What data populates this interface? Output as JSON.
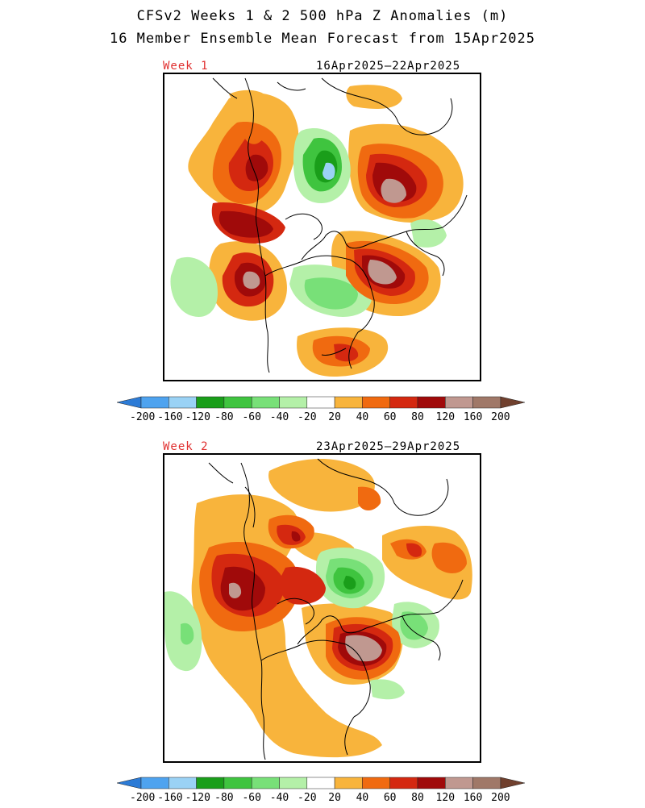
{
  "title_line1": "CFSv2 Weeks 1 & 2 500 hPa Z Anomalies (m)",
  "title_line2": "16 Member Ensemble Mean Forecast from 15Apr2025",
  "panels": [
    {
      "label": "Week 1",
      "dates": "16Apr2025—22Apr2025"
    },
    {
      "label": "Week 2",
      "dates": "23Apr2025—29Apr2025"
    }
  ],
  "colorbar": {
    "labels": [
      "-200",
      "-160",
      "-120",
      "-80",
      "-60",
      "-40",
      "-20",
      "20",
      "40",
      "60",
      "80",
      "120",
      "160",
      "200"
    ],
    "colors": [
      "#2c7bd6",
      "#4ea3ef",
      "#9ad2f5",
      "#1a9e1a",
      "#3fc43f",
      "#78e078",
      "#b4f0a8",
      "#ffffff",
      "#f8b43c",
      "#f06a10",
      "#d42810",
      "#a00a0a",
      "#c09890",
      "#a07868",
      "#70402e"
    ]
  }
}
